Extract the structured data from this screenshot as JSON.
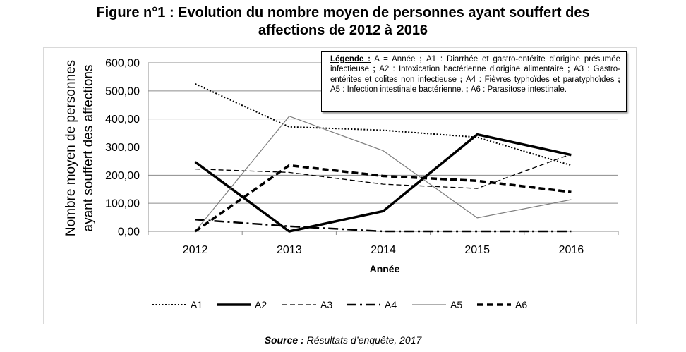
{
  "figure": {
    "title_line1": "Figure n°1 : Evolution du nombre moyen de personnes ayant souffert des",
    "title_line2": "affections de 2012 à 2016",
    "source_label": "Source :",
    "source_text": " Résultats d’enquête, 2017"
  },
  "legend_box": {
    "label": "Légende :",
    "parts": [
      " A = Année ",
      "; ",
      "A1 : Diarrhée et gastro-entérite d’origine présumée infectieuse ",
      "; ",
      "A2 : Intoxication bactérienne d’origine alimentaire ",
      "; ",
      "A3 : Gastro-entérites et colites non infectieuse ",
      "; ",
      "A4 : Fièvres typhoïdes et paratyphoïdes ",
      "; ",
      "A5 : Infection intestinale bactérienne. ",
      "; ",
      "A6 : Parasitose intestinale."
    ]
  },
  "chart_data": {
    "type": "line",
    "title": "",
    "xlabel": "Année",
    "ylabel_line1": "Nombre moyen de personnes",
    "ylabel_line2": "ayant souffert des affections",
    "categories": [
      "2012",
      "2013",
      "2014",
      "2015",
      "2016"
    ],
    "ylim": [
      0,
      600
    ],
    "yticks": [
      "0,00",
      "100,00",
      "200,00",
      "300,00",
      "400,00",
      "500,00",
      "600,00"
    ],
    "grid": true,
    "legend_position": "bottom",
    "series": [
      {
        "name": "A1",
        "values": [
          525,
          372,
          360,
          335,
          235
        ],
        "style": "dotted",
        "color": "#000000"
      },
      {
        "name": "A2",
        "values": [
          247,
          0,
          72,
          345,
          272
        ],
        "style": "thick-solid",
        "color": "#000000"
      },
      {
        "name": "A3",
        "values": [
          222,
          210,
          168,
          153,
          275
        ],
        "style": "dashed",
        "color": "#000000"
      },
      {
        "name": "A4",
        "values": [
          42,
          18,
          0,
          0,
          0
        ],
        "style": "dash-dot",
        "color": "#000000"
      },
      {
        "name": "A5",
        "values": [
          0,
          410,
          287,
          48,
          113
        ],
        "style": "thin-solid",
        "color": "#7f7f7f"
      },
      {
        "name": "A6",
        "values": [
          0,
          235,
          197,
          180,
          140
        ],
        "style": "thick-dashed",
        "color": "#000000"
      }
    ]
  }
}
